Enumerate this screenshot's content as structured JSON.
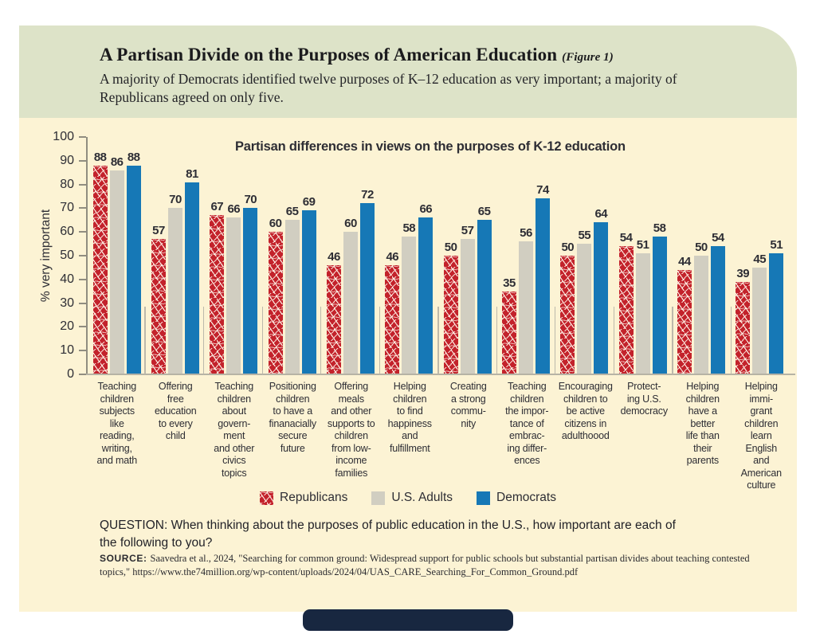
{
  "header": {
    "title": "A Partisan Divide on the Purposes of American Education",
    "figure_tag": "(Figure 1)",
    "subtitle": "A majority of Democrats identified twelve purposes of K–12 education as very important; a majority of Republicans agreed on only five."
  },
  "chart_data": {
    "type": "bar",
    "title": "Partisan differences in views on the purposes of K-12 education",
    "ylabel": "% very important",
    "ylim": [
      0,
      100
    ],
    "yticks": [
      0,
      10,
      20,
      30,
      40,
      50,
      60,
      70,
      80,
      90,
      100
    ],
    "grid": false,
    "legend_position": "bottom",
    "categories": [
      "Teaching\nchildren\nsubjects\nlike\nreading,\nwriting,\nand math",
      "Offering\nfree\neducation\nto every\nchild",
      "Teaching\nchildren\nabout\ngovern-\nment\nand other\ncivics\ntopics",
      "Positioning\nchildren\nto have a\nfinanacially\nsecure\nfuture",
      "Offering\nmeals\nand other\nsupports to\nchildren\nfrom low-\nincome\nfamilies",
      "Helping\nchildren\nto find\nhappiness\nand\nfulfillment",
      "Creating\na strong\ncommu-\nnity",
      "Teaching\nchildren\nthe impor-\ntance of\nembrac-\ning differ-\nences",
      "Encouraging\nchildren to\nbe active\ncitizens in\nadulthoood",
      "Protect-\ning U.S.\ndemocracy",
      "Helping\nchildren\nhave a\nbetter\nlife than\ntheir\nparents",
      "Helping\nimmi-\ngrant\nchildren\nlearn\nEnglish\nand\nAmerican\nculture"
    ],
    "series": [
      {
        "name": "Republicans",
        "color": "#c3222b",
        "pattern": "white-confetti",
        "values": [
          88,
          57,
          67,
          60,
          46,
          46,
          50,
          35,
          50,
          54,
          44,
          39
        ]
      },
      {
        "name": "U.S. Adults",
        "color": "#d1cec1",
        "pattern": "solid",
        "values": [
          86,
          70,
          66,
          65,
          60,
          58,
          57,
          56,
          55,
          51,
          50,
          45
        ]
      },
      {
        "name": "Democrats",
        "color": "#1678b6",
        "pattern": "solid",
        "values": [
          88,
          81,
          70,
          69,
          72,
          66,
          65,
          74,
          64,
          58,
          54,
          51
        ]
      }
    ]
  },
  "question": "QUESTION: When thinking about the purposes of public education in the U.S., how important are each of the following to you?",
  "source": {
    "label": "SOURCE:",
    "text": "Saavedra et al., 2024, \"Searching for common ground: Widespread support for public schools but substantial partisan divides about teaching contested topics,\" https://www.the74million.org/wp-content/uploads/2024/04/UAS_CARE_Searching_For_Common_Ground.pdf"
  },
  "colors": {
    "header_band": "#dde3c8",
    "card_background": "#fcf3d4",
    "republicans": "#c3222b",
    "us_adults": "#d1cec1",
    "democrats": "#1678b6",
    "axis": "#908d80",
    "text": "#2d2d34",
    "bottom_bar": "#182740"
  }
}
